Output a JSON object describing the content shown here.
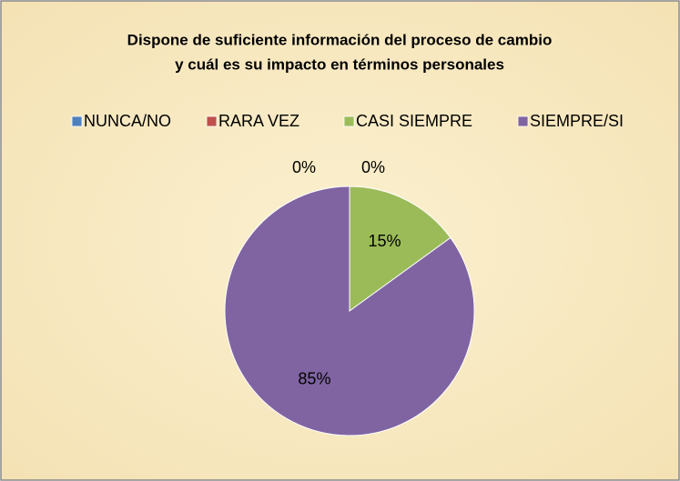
{
  "chart_data": {
    "type": "pie",
    "title": [
      "Dispone de suficiente información del proceso de cambio",
      "y cuál es su impacto en términos personales"
    ],
    "categories": [
      "NUNCA/NO",
      "RARA VEZ",
      "CASI SIEMPRE",
      "SIEMPRE/SI"
    ],
    "values": [
      0,
      0,
      15,
      85
    ],
    "value_labels": [
      "0%",
      "0%",
      "15%",
      "85%"
    ],
    "colors": [
      "#4f81bd",
      "#c0504d",
      "#9bbb59",
      "#8064a2"
    ],
    "legend": "top"
  }
}
